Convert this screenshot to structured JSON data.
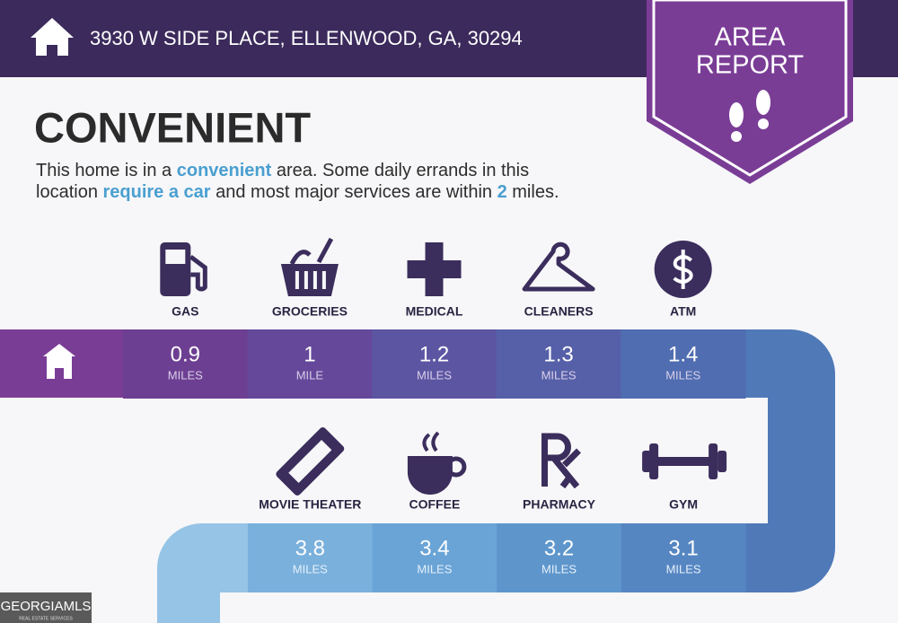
{
  "header": {
    "address": "3930 W SIDE PLACE, ELLENWOOD, GA, 30294"
  },
  "badge": {
    "lines": [
      "AREA",
      "REPORT"
    ]
  },
  "heading": "CONVENIENT",
  "description": {
    "lines": [
      [
        {
          "text": "This home is in a ",
          "highlight": false
        },
        {
          "text": "convenient",
          "highlight": true
        },
        {
          "text": " area. Some daily errands in this",
          "highlight": false
        }
      ],
      [
        {
          "text": "location ",
          "highlight": false
        },
        {
          "text": "require a car",
          "highlight": true
        },
        {
          "text": " and most major services are within ",
          "highlight": false
        },
        {
          "text": "2",
          "highlight": true
        },
        {
          "text": " miles.",
          "highlight": false
        }
      ]
    ]
  },
  "rows": [
    {
      "items": [
        {
          "label": "GAS",
          "distance": 0.9,
          "unit": "MILES"
        },
        {
          "label": "GROCERIES",
          "distance": 1,
          "unit": "MILE"
        },
        {
          "label": "MEDICAL",
          "distance": 1.2,
          "unit": "MILES"
        },
        {
          "label": "CLEANERS",
          "distance": 1.3,
          "unit": "MILES"
        },
        {
          "label": "ATM",
          "distance": 1.4,
          "unit": "MILES"
        }
      ]
    },
    {
      "items": [
        {
          "label": "MOVIE THEATER",
          "distance": 3.8,
          "unit": "MILES"
        },
        {
          "label": "COFFEE",
          "distance": 3.4,
          "unit": "MILES"
        },
        {
          "label": "PHARMACY",
          "distance": 3.2,
          "unit": "MILES"
        },
        {
          "label": "GYM",
          "distance": 3.1,
          "unit": "MILES"
        }
      ]
    }
  ],
  "footer": {
    "logo": "GEORGIAMLS",
    "logo_sub": "REAL ESTATE SERVICES"
  }
}
